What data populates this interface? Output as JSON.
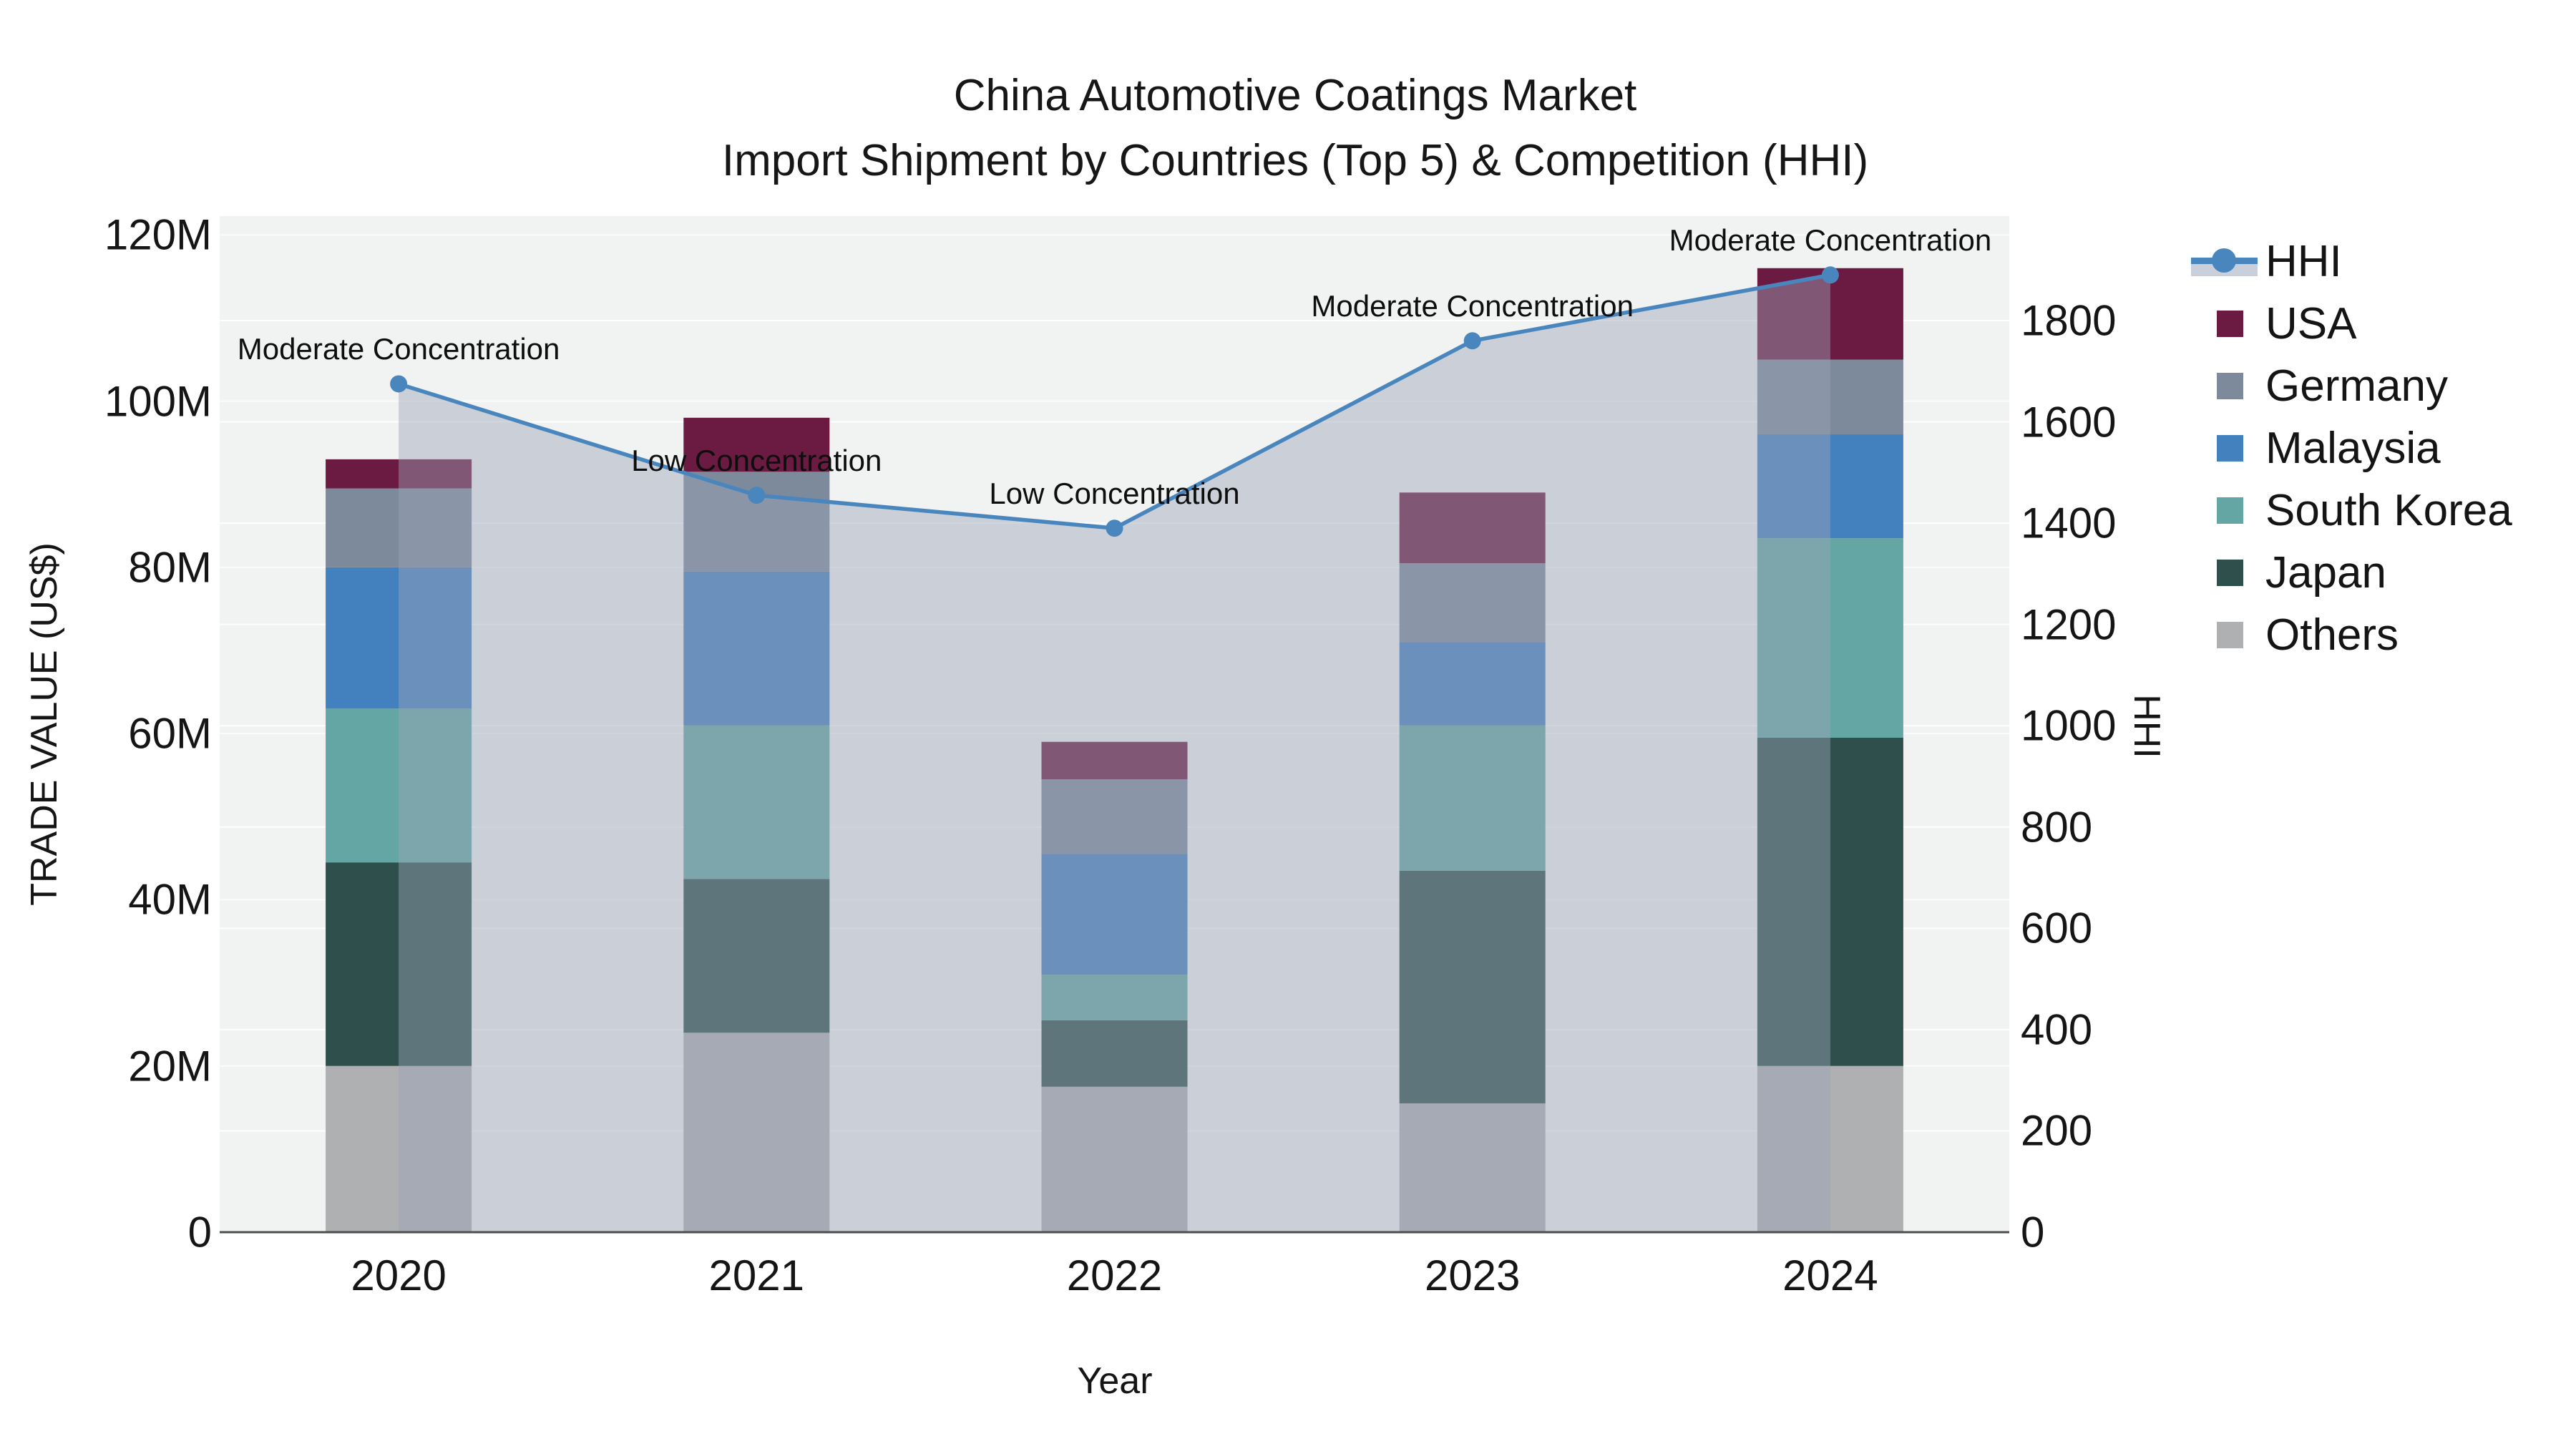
{
  "title": {
    "line1": "China Automotive Coatings Market",
    "line2": "Import Shipment by Countries (Top 5) & Competition (HHI)"
  },
  "axes": {
    "left": {
      "title": "TRADE VALUE (US$)",
      "ticks": [
        {
          "label": "0",
          "value": 0
        },
        {
          "label": "20M",
          "value": 20
        },
        {
          "label": "40M",
          "value": 40
        },
        {
          "label": "60M",
          "value": 60
        },
        {
          "label": "80M",
          "value": 80
        },
        {
          "label": "100M",
          "value": 100
        },
        {
          "label": "120M",
          "value": 120
        }
      ]
    },
    "right": {
      "title": "HHI",
      "ticks": [
        {
          "label": "0",
          "value": 0
        },
        {
          "label": "200",
          "value": 200
        },
        {
          "label": "400",
          "value": 400
        },
        {
          "label": "600",
          "value": 600
        },
        {
          "label": "800",
          "value": 800
        },
        {
          "label": "1000",
          "value": 1000
        },
        {
          "label": "1200",
          "value": 1200
        },
        {
          "label": "1400",
          "value": 1400
        },
        {
          "label": "1600",
          "value": 1600
        },
        {
          "label": "1800",
          "value": 1800
        }
      ]
    },
    "x": {
      "title": "Year",
      "labels": [
        "2020",
        "2021",
        "2022",
        "2023",
        "2024"
      ]
    }
  },
  "legend": {
    "items": [
      {
        "label": "HHI",
        "type": "line",
        "color": "#4A86BE",
        "fill": "#C9D0DC"
      },
      {
        "label": "USA",
        "type": "swatch",
        "color": "#6B1A41"
      },
      {
        "label": "Germany",
        "type": "swatch",
        "color": "#7C8A9C"
      },
      {
        "label": "Malaysia",
        "type": "swatch",
        "color": "#4380BE"
      },
      {
        "label": "South Korea",
        "type": "swatch",
        "color": "#64A6A3"
      },
      {
        "label": "Japan",
        "type": "swatch",
        "color": "#2E4F4B"
      },
      {
        "label": "Others",
        "type": "swatch",
        "color": "#AEB0B2"
      }
    ]
  },
  "chart_data": {
    "type": "bar+line",
    "title": "China Automotive Coatings Market — Import Shipment by Countries (Top 5) & Competition (HHI)",
    "categories": [
      "2020",
      "2021",
      "2022",
      "2023",
      "2024"
    ],
    "bar_unit": "Million US$",
    "bar_stack_bottom_to_top": [
      "Others",
      "Japan",
      "South Korea",
      "Malaysia",
      "Germany",
      "USA"
    ],
    "series": [
      {
        "name": "Others",
        "color": "#AEB0B2",
        "values": [
          20.0,
          24.0,
          17.5,
          15.5,
          20.0
        ]
      },
      {
        "name": "Japan",
        "color": "#2E4F4B",
        "values": [
          24.5,
          18.5,
          8.0,
          28.0,
          39.5
        ]
      },
      {
        "name": "South Korea",
        "color": "#64A6A3",
        "values": [
          18.5,
          18.5,
          5.5,
          17.5,
          24.0
        ]
      },
      {
        "name": "Malaysia",
        "color": "#4380BE",
        "values": [
          17.0,
          18.5,
          14.5,
          10.0,
          12.5
        ]
      },
      {
        "name": "Germany",
        "color": "#7C8A9C",
        "values": [
          9.5,
          12.0,
          9.0,
          9.5,
          9.0
        ]
      },
      {
        "name": "USA",
        "color": "#6B1A41",
        "values": [
          3.5,
          6.5,
          4.5,
          8.5,
          11.0
        ]
      }
    ],
    "bar_totals": [
      93,
      98,
      59,
      89,
      116
    ],
    "line_series": {
      "name": "HHI",
      "axis": "right",
      "color": "#4A86BE",
      "area_fill": "#9BA5B9",
      "area_opacity": 0.45,
      "values": [
        1675,
        1455,
        1390,
        1760,
        1890
      ]
    },
    "annotations": [
      {
        "text": "Moderate Concentration",
        "x_index": 0
      },
      {
        "text": "Low Concentration",
        "x_index": 1
      },
      {
        "text": "Low Concentration",
        "x_index": 2
      },
      {
        "text": "Moderate Concentration",
        "x_index": 3
      },
      {
        "text": "Moderate Concentration",
        "x_index": 4
      }
    ],
    "xlabel": "Year",
    "ylabel_left": "TRADE VALUE (US$)",
    "ylabel_right": "HHI",
    "ylim_left": [
      0,
      122
    ],
    "ylim_right": [
      0,
      2006
    ],
    "grid": true,
    "legend_position": "right"
  },
  "colors": {
    "plot_bg": "#F1F2F2",
    "grid": "#FFFFFF",
    "axis_line": "#4D4D4D",
    "text": "#111111"
  }
}
